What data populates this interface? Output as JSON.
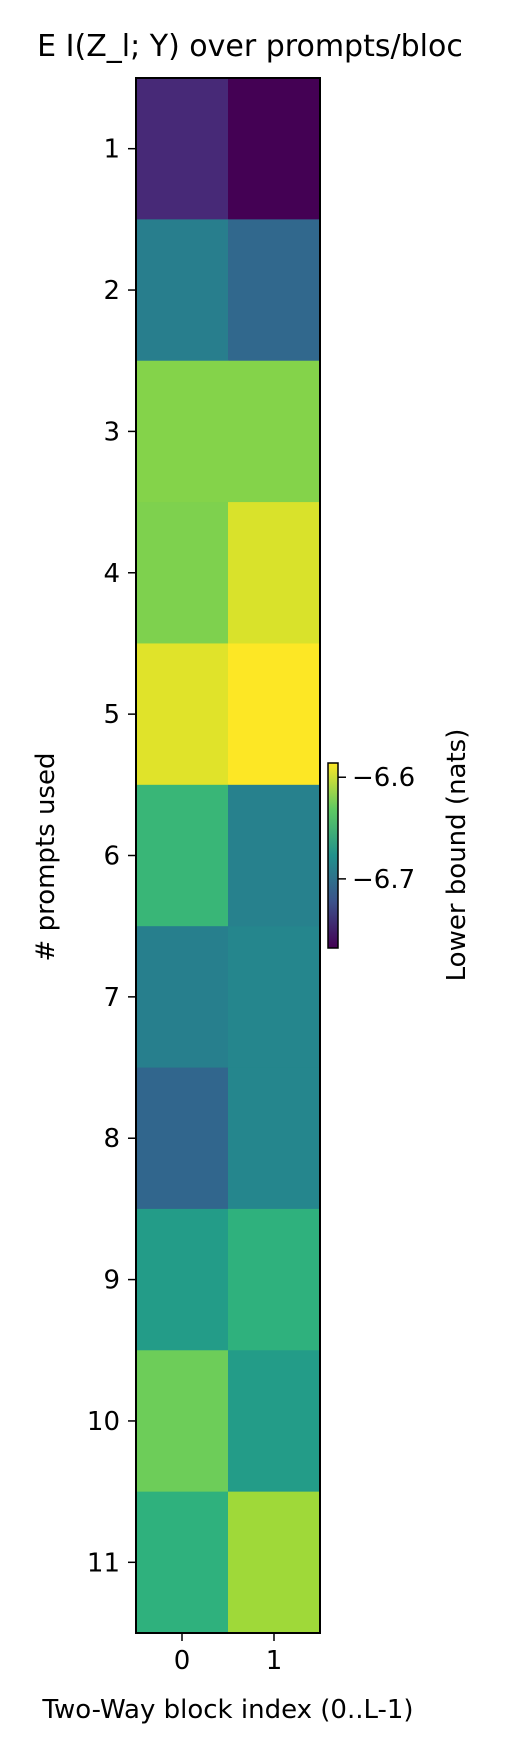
{
  "chart_data": {
    "type": "heatmap",
    "title": "E  I(Z_l; Y) over prompts/bloc",
    "xlabel": "Two-Way block index (0..L-1)",
    "ylabel": "# prompts used",
    "x_categories": [
      "0",
      "1"
    ],
    "y_categories": [
      "1",
      "2",
      "3",
      "4",
      "5",
      "6",
      "7",
      "8",
      "9",
      "10",
      "11"
    ],
    "values": [
      [
        -6.743,
        -6.768
      ],
      [
        -6.691,
        -6.707
      ],
      [
        -6.62,
        -6.62
      ],
      [
        -6.622,
        -6.596
      ],
      [
        -6.594,
        -6.586
      ],
      [
        -6.647,
        -6.689
      ],
      [
        -6.69,
        -6.685
      ],
      [
        -6.708,
        -6.685
      ],
      [
        -6.668,
        -6.651
      ],
      [
        -6.627,
        -6.668
      ],
      [
        -6.651,
        -6.612
      ]
    ],
    "colormap": "viridis",
    "vmin": -6.768,
    "vmax": -6.586,
    "colorbar": {
      "label": "Lower bound (nats)",
      "ticks": [
        -6.6,
        -6.7
      ],
      "tick_labels": [
        "−6.6",
        "−6.7"
      ]
    },
    "grid": false
  }
}
